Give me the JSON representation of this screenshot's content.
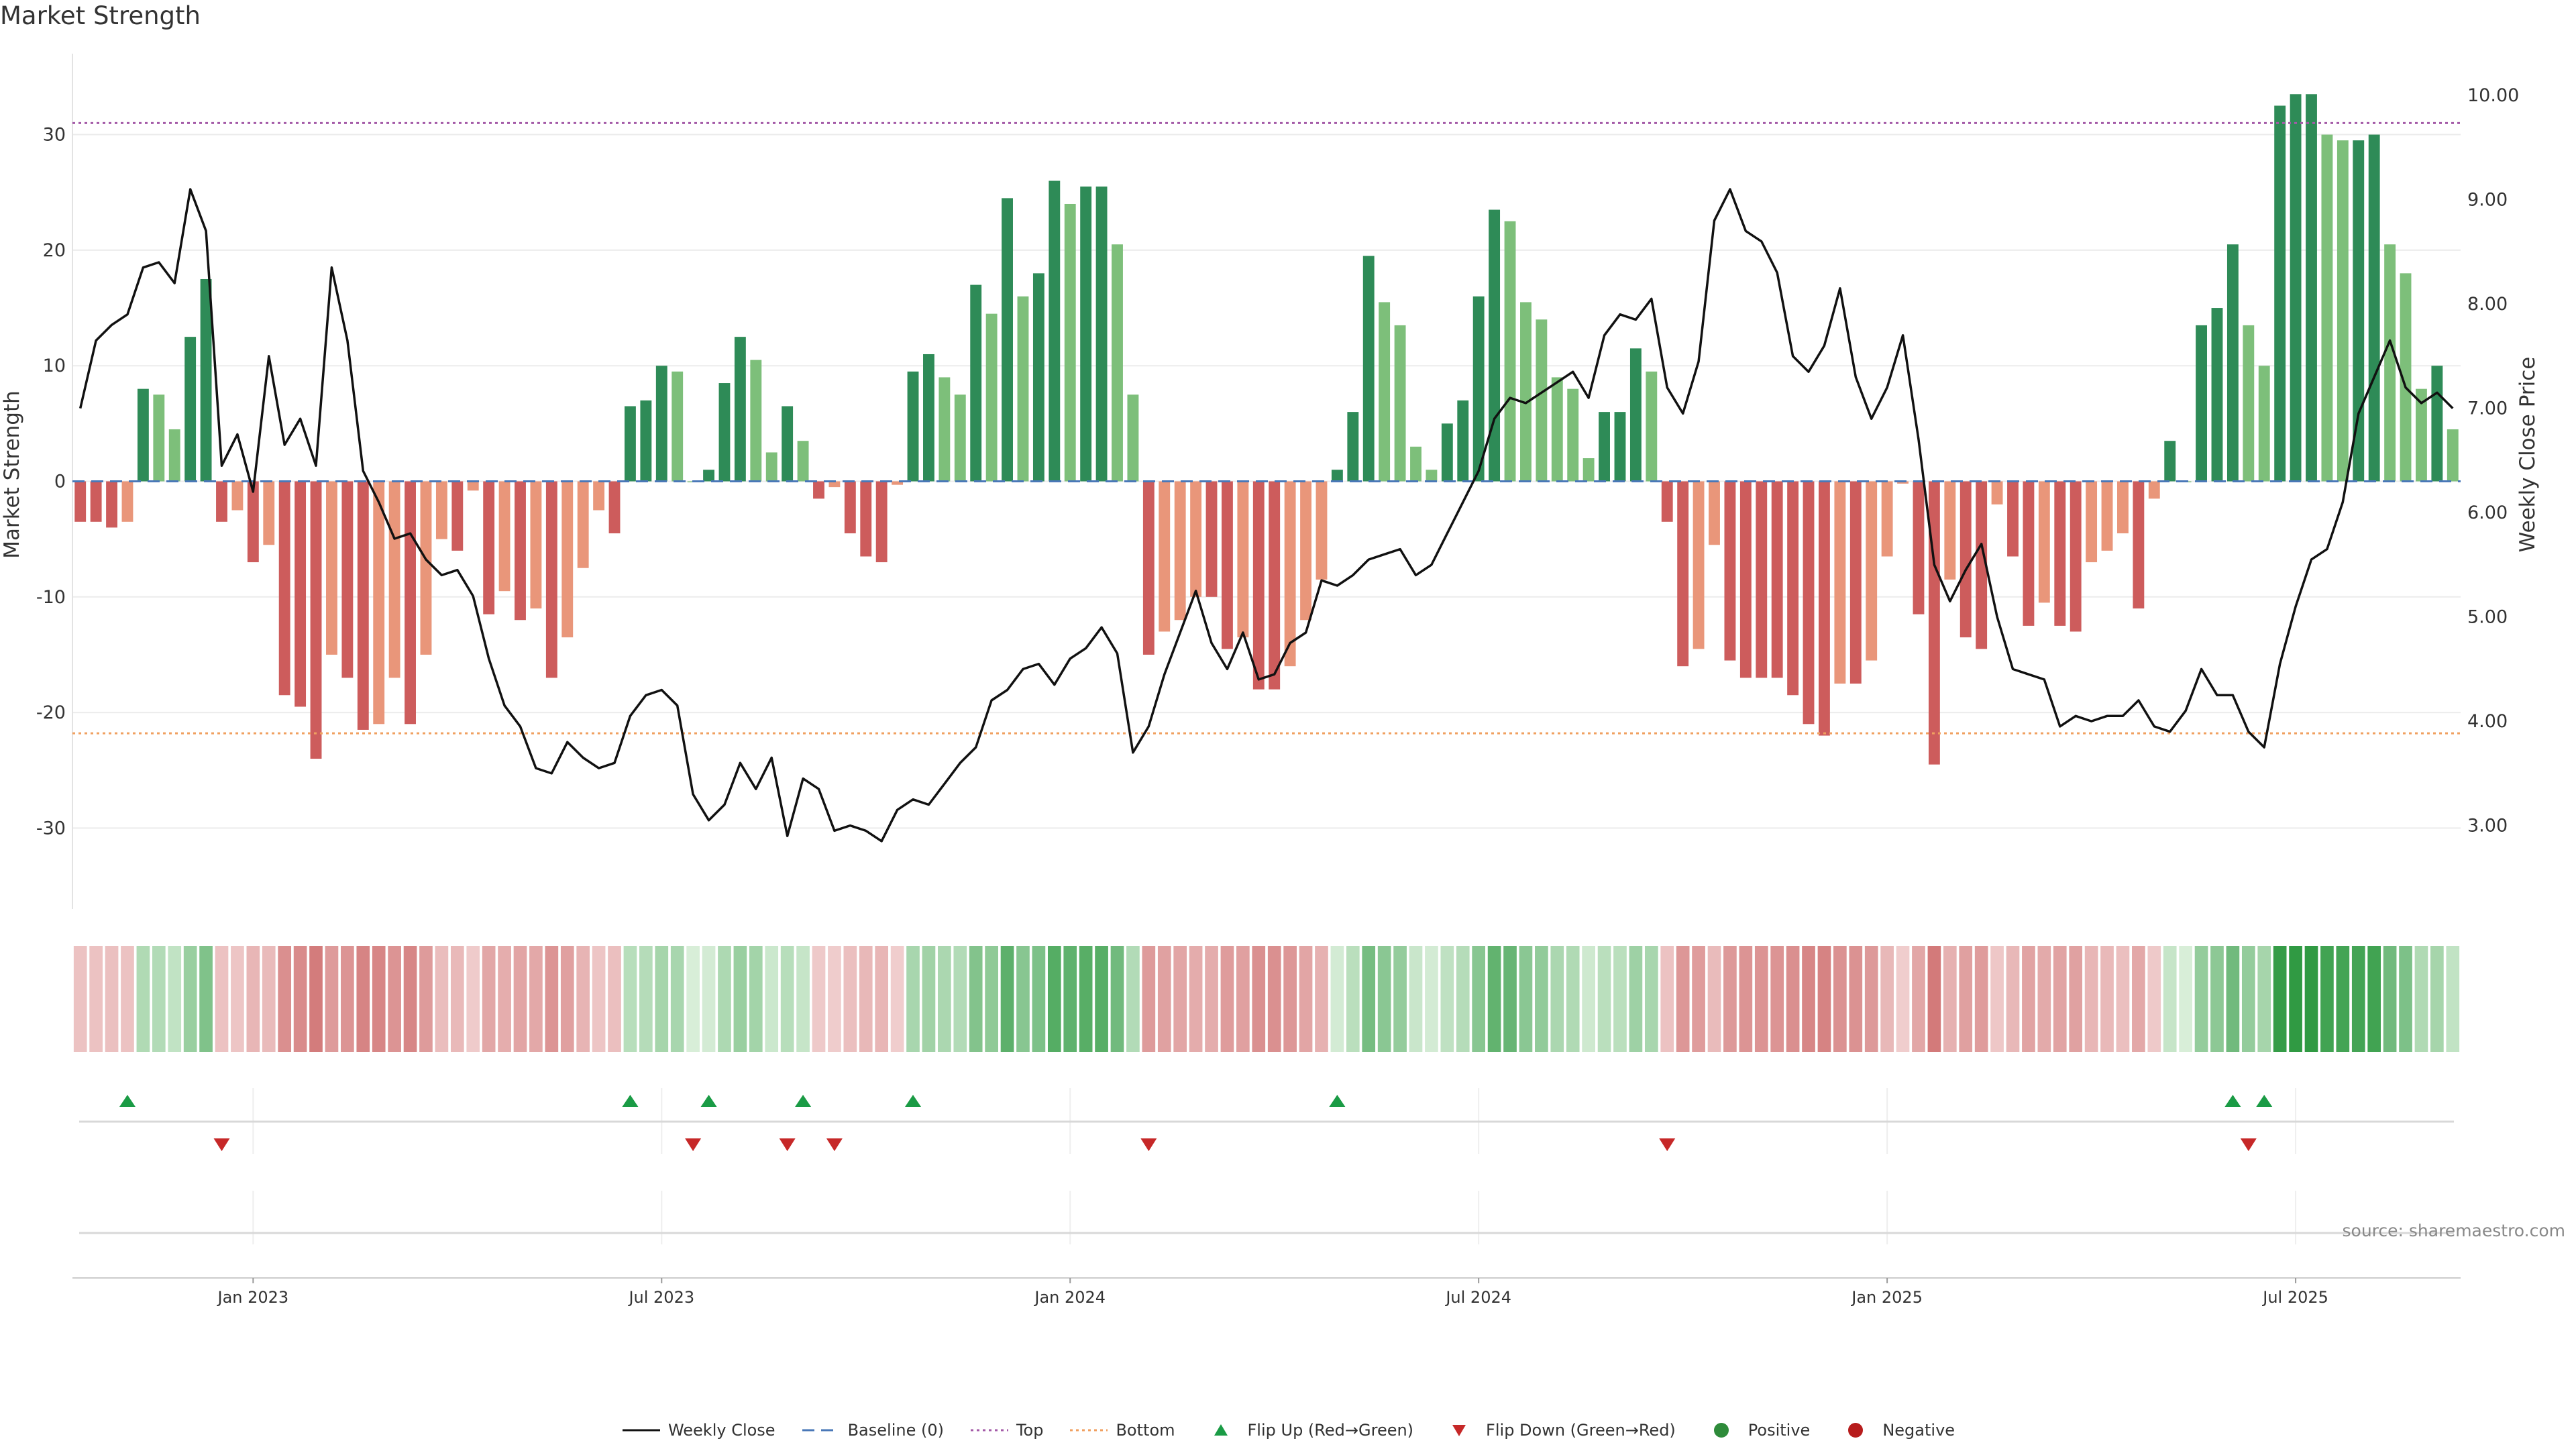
{
  "chart_data": {
    "type": "bar+line",
    "title": "Market Strength",
    "left_axis": {
      "label": "Market Strength",
      "ticks": [
        30,
        20,
        10,
        0,
        -10,
        -20,
        -30
      ],
      "range": [
        -37,
        37
      ]
    },
    "right_axis": {
      "label": "Weekly Close Price",
      "ticks": [
        "10.00",
        "9.00",
        "8.00",
        "7.00",
        "6.00",
        "5.00",
        "4.00",
        "3.00"
      ],
      "range": [
        2.2,
        10.4
      ]
    },
    "x_ticks": [
      "Jan 2023",
      "Jul 2023",
      "Jan 2024",
      "Jul 2024",
      "Jan 2025",
      "Jul 2025"
    ],
    "top_threshold": 31,
    "bottom_threshold": -21.8,
    "strength": [
      -3.5,
      -3.5,
      -4,
      -3.5,
      8,
      7.5,
      4.5,
      12.5,
      17.5,
      -3.5,
      -2.5,
      -7,
      -5.5,
      -18.5,
      -19.5,
      -24,
      -15,
      -17,
      -21.5,
      -21,
      -17,
      -21,
      -15,
      -5,
      -6,
      -0.8,
      -11.5,
      -9.5,
      -12,
      -11,
      -17,
      -13.5,
      -7.5,
      -2.5,
      -4.5,
      6.5,
      7,
      10,
      9.5,
      0,
      1,
      8.5,
      12.5,
      10.5,
      2.5,
      6.5,
      3.5,
      -1.5,
      -0.5,
      -4.5,
      -6.5,
      -7,
      -0.3,
      9.5,
      11,
      9,
      7.5,
      17,
      14.5,
      24.5,
      16,
      18,
      26,
      24,
      25.5,
      25.5,
      20.5,
      7.5,
      -15,
      -13,
      -12,
      -10,
      -10,
      -14.5,
      -13.5,
      -18,
      -18,
      -16,
      -12,
      -8.5,
      1,
      6,
      19.5,
      15.5,
      13.5,
      3,
      1,
      5,
      7,
      16,
      23.5,
      22.5,
      15.5,
      14,
      9,
      8,
      2,
      6,
      6,
      11.5,
      9.5,
      -3.5,
      -16,
      -14.5,
      -5.5,
      -15.5,
      -17,
      -17,
      -17,
      -18.5,
      -21,
      -22,
      -17.5,
      -17.5,
      -15.5,
      -6.5,
      -0.2,
      -11.5,
      -24.5,
      -8.5,
      -13.5,
      -14.5,
      -2,
      -6.5,
      -12.5,
      -10.5,
      -12.5,
      -13,
      -7,
      -6,
      -4.5,
      -11,
      -1.5,
      3.5,
      0,
      13.5,
      15,
      20.5,
      13.5,
      10,
      32.5,
      33.5,
      33.5,
      30,
      29.5,
      29.5,
      30,
      20.5,
      18,
      8,
      10,
      4.5
    ],
    "close": [
      7,
      7.65,
      7.8,
      7.9,
      8.35,
      8.4,
      8.2,
      9.1,
      8.7,
      6.45,
      6.75,
      6.2,
      7.5,
      6.65,
      6.9,
      6.45,
      8.35,
      7.65,
      6.4,
      6.1,
      5.75,
      5.8,
      5.55,
      5.4,
      5.45,
      5.2,
      4.6,
      4.15,
      3.95,
      3.55,
      3.5,
      3.8,
      3.65,
      3.55,
      3.6,
      4.05,
      4.25,
      4.3,
      4.15,
      3.3,
      3.05,
      3.2,
      3.6,
      3.35,
      3.65,
      2.9,
      3.45,
      3.35,
      2.95,
      3,
      2.95,
      2.85,
      3.15,
      3.25,
      3.2,
      3.4,
      3.6,
      3.75,
      4.2,
      4.3,
      4.5,
      4.55,
      4.35,
      4.6,
      4.7,
      4.9,
      4.65,
      3.7,
      3.95,
      4.45,
      4.85,
      5.25,
      4.75,
      4.5,
      4.85,
      4.4,
      4.45,
      4.75,
      4.85,
      5.35,
      5.3,
      5.4,
      5.55,
      5.6,
      5.65,
      5.4,
      5.5,
      5.8,
      6.1,
      6.4,
      6.9,
      7.1,
      7.05,
      7.15,
      7.25,
      7.35,
      7.1,
      7.7,
      7.9,
      7.85,
      8.05,
      7.2,
      6.95,
      7.45,
      8.8,
      9.1,
      8.7,
      8.6,
      8.3,
      7.5,
      7.35,
      7.6,
      8.15,
      7.3,
      6.9,
      7.2,
      7.7,
      6.7,
      5.5,
      5.15,
      5.45,
      5.7,
      5.0,
      4.5,
      4.45,
      4.4,
      3.95,
      4.05,
      4.0,
      4.05,
      4.05,
      4.2,
      3.95,
      3.9,
      4.1,
      4.5,
      4.25,
      4.25,
      3.9,
      3.75,
      4.55,
      5.1,
      5.55,
      5.65,
      6.1,
      6.95,
      7.3,
      7.65,
      7.2,
      7.05,
      7.15,
      7.0
    ]
  },
  "heat_strip": {
    "labels": [
      "Positive",
      "Negative"
    ]
  },
  "flips": {
    "up": [
      3,
      35,
      40,
      46,
      53,
      80,
      137,
      139
    ],
    "down": [
      9,
      39,
      45,
      48,
      68,
      101,
      138
    ]
  },
  "legend": {
    "weekly_close": "Weekly Close",
    "baseline": "Baseline (0)",
    "top": "Top",
    "bottom": "Bottom",
    "flip_up": "Flip Up (Red→Green)",
    "flip_down": "Flip Down (Green→Red)",
    "positive": "Positive",
    "negative": "Negative"
  },
  "colors": {
    "green_dark": "#2e8b57",
    "green_light": "#7dbf7a",
    "red_dark": "#cd5c5c",
    "red_light": "#e9967a",
    "top_line": "#a45ba8",
    "bottom_line": "#f0a060",
    "baseline": "#4a78b8",
    "flip_up": "#1a9b45",
    "flip_down": "#c62828"
  },
  "source": "source: sharemaestro.com"
}
